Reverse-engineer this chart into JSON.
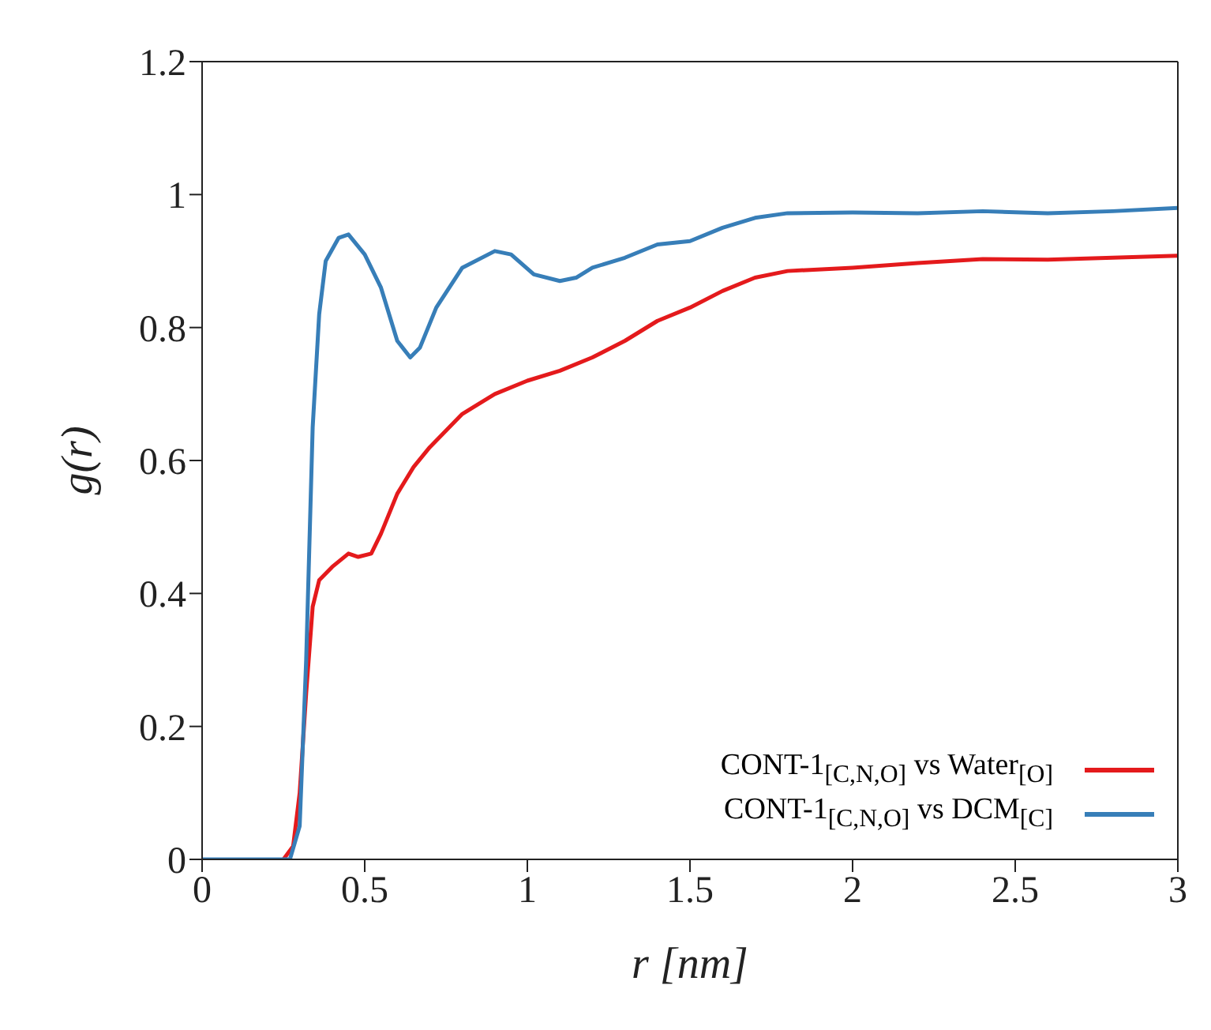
{
  "chart_data": {
    "type": "line",
    "xlabel": "r [nm]",
    "ylabel": "g(r)",
    "xlim": [
      0,
      3
    ],
    "ylim": [
      0,
      1.2
    ],
    "xticks": [
      0,
      0.5,
      1,
      1.5,
      2,
      2.5,
      3
    ],
    "yticks": [
      0,
      0.2,
      0.4,
      0.6,
      0.8,
      1,
      1.2
    ],
    "legend": "bottom right",
    "marker": "none",
    "line_style": "solid",
    "series": [
      {
        "name": "CONT-1$_{[C,N,O]}$ vs Water$_{[O]}$",
        "color": "#e41a1c",
        "x": [
          0.25,
          0.28,
          0.3,
          0.32,
          0.34,
          0.36,
          0.4,
          0.45,
          0.48,
          0.52,
          0.55,
          0.6,
          0.65,
          0.7,
          0.8,
          0.9,
          1.0,
          1.1,
          1.2,
          1.3,
          1.4,
          1.5,
          1.6,
          1.7,
          1.8,
          2.0,
          2.2,
          2.4,
          2.6,
          2.8,
          3.0
        ],
        "values": [
          0,
          0.02,
          0.1,
          0.25,
          0.38,
          0.42,
          0.44,
          0.46,
          0.455,
          0.46,
          0.49,
          0.55,
          0.59,
          0.62,
          0.67,
          0.7,
          0.72,
          0.735,
          0.755,
          0.78,
          0.81,
          0.83,
          0.855,
          0.875,
          0.885,
          0.89,
          0.897,
          0.903,
          0.902,
          0.905,
          0.908
        ]
      },
      {
        "name": "CONT-1$_{[C,N,O]}$ vs DCM$_{[C]}$",
        "color": "#377eb8",
        "x": [
          0,
          0.1,
          0.2,
          0.27,
          0.3,
          0.32,
          0.34,
          0.36,
          0.38,
          0.42,
          0.45,
          0.5,
          0.55,
          0.6,
          0.64,
          0.67,
          0.72,
          0.8,
          0.9,
          0.95,
          1.02,
          1.1,
          1.15,
          1.2,
          1.3,
          1.4,
          1.5,
          1.6,
          1.7,
          1.8,
          2.0,
          2.2,
          2.4,
          2.6,
          2.8,
          3.0
        ],
        "values": [
          0,
          0,
          0,
          0,
          0.05,
          0.3,
          0.65,
          0.82,
          0.9,
          0.935,
          0.94,
          0.91,
          0.86,
          0.78,
          0.755,
          0.77,
          0.83,
          0.89,
          0.915,
          0.91,
          0.88,
          0.87,
          0.875,
          0.89,
          0.905,
          0.925,
          0.93,
          0.95,
          0.965,
          0.972,
          0.973,
          0.972,
          0.975,
          0.972,
          0.975,
          0.98
        ]
      }
    ]
  }
}
